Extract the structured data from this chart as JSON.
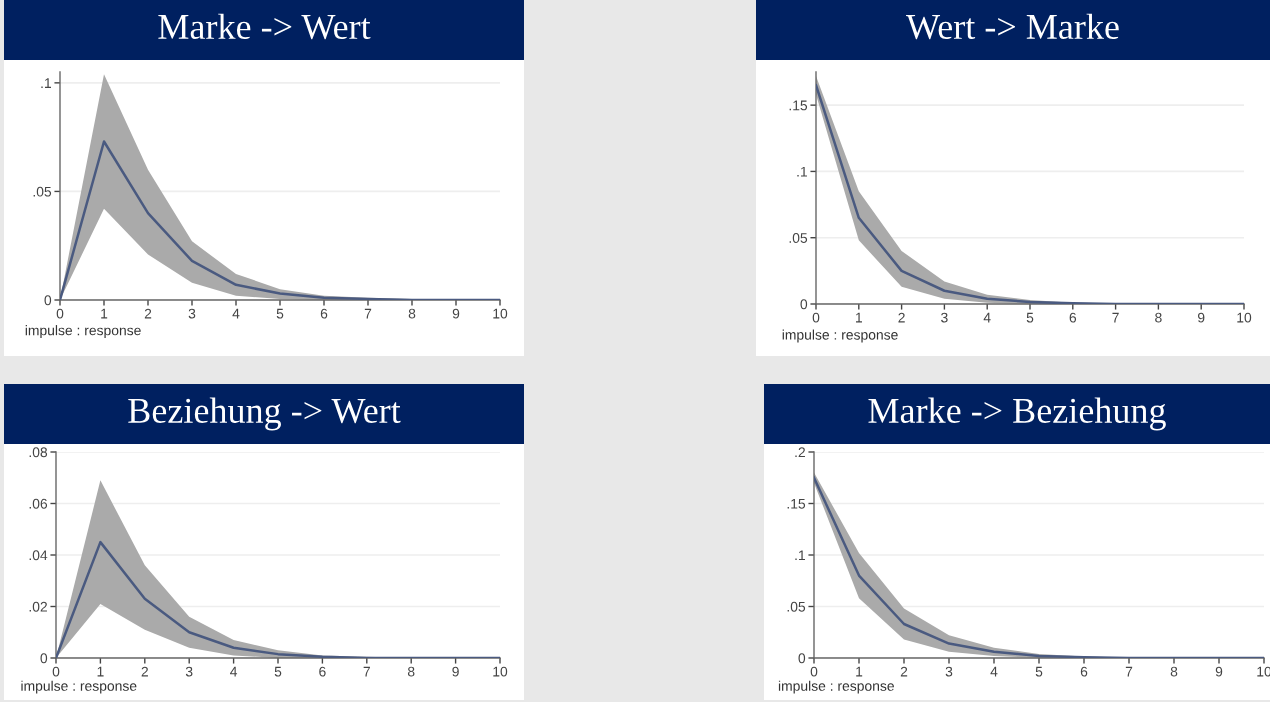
{
  "chart_data": [
    {
      "type": "line",
      "title": "Marke -> Wert",
      "xlabel": "impulse : response",
      "x": [
        0,
        1,
        2,
        3,
        4,
        5,
        6,
        7,
        8,
        9,
        10
      ],
      "xlim": [
        0,
        10
      ],
      "xticks": [
        0,
        1,
        2,
        3,
        4,
        5,
        6,
        7,
        8,
        9,
        10
      ],
      "ylim": [
        0,
        0.105
      ],
      "yticks": [
        0,
        {
          "value": 0.05,
          "label": ".05"
        },
        {
          "value": 0.1,
          "label": ".1"
        }
      ],
      "grid": "y",
      "legend": false,
      "marker": "none",
      "line_style": "solid",
      "series": [
        {
          "color": "#4a5a80",
          "values": [
            0,
            0.073,
            0.04,
            0.018,
            0.007,
            0.003,
            0.001,
            0.0005,
            0,
            0,
            0
          ],
          "upper": [
            0,
            0.104,
            0.06,
            0.027,
            0.012,
            0.005,
            0.002,
            0.001,
            0.0005,
            0,
            0
          ],
          "lower": [
            0,
            0.042,
            0.021,
            0.008,
            0.002,
            0.0005,
            0,
            0,
            0,
            0,
            0
          ]
        }
      ]
    },
    {
      "type": "line",
      "title": "Wert -> Marke",
      "xlabel": "impulse : response",
      "x": [
        0,
        1,
        2,
        3,
        4,
        5,
        6,
        7,
        8,
        9,
        10
      ],
      "xlim": [
        0,
        10
      ],
      "xticks": [
        0,
        1,
        2,
        3,
        4,
        5,
        6,
        7,
        8,
        9,
        10
      ],
      "ylim": [
        0,
        0.175
      ],
      "yticks": [
        0,
        {
          "value": 0.05,
          "label": ".05"
        },
        {
          "value": 0.1,
          "label": ".1"
        },
        {
          "value": 0.15,
          "label": ".15"
        }
      ],
      "grid": "y",
      "legend": false,
      "marker": "none",
      "line_style": "solid",
      "series": [
        {
          "color": "#4a5a80",
          "values": [
            0.165,
            0.065,
            0.025,
            0.01,
            0.004,
            0.0015,
            0.0005,
            0,
            0,
            0,
            0
          ],
          "upper": [
            0.172,
            0.085,
            0.04,
            0.017,
            0.007,
            0.003,
            0.001,
            0.0005,
            0,
            0,
            0
          ],
          "lower": [
            0.158,
            0.048,
            0.013,
            0.004,
            0.001,
            0,
            0,
            0,
            0,
            0,
            0
          ]
        }
      ]
    },
    {
      "type": "line",
      "title": "Beziehung -> Wert",
      "xlabel": "impulse : response",
      "x": [
        0,
        1,
        2,
        3,
        4,
        5,
        6,
        7,
        8,
        9,
        10
      ],
      "xlim": [
        0,
        10
      ],
      "xticks": [
        0,
        1,
        2,
        3,
        4,
        5,
        6,
        7,
        8,
        9,
        10
      ],
      "ylim": [
        0,
        0.08
      ],
      "yticks": [
        0,
        {
          "value": 0.02,
          "label": ".02"
        },
        {
          "value": 0.04,
          "label": ".04"
        },
        {
          "value": 0.06,
          "label": ".06"
        },
        {
          "value": 0.08,
          "label": ".08"
        }
      ],
      "grid": "y",
      "legend": false,
      "marker": "none",
      "line_style": "solid",
      "series": [
        {
          "color": "#4a5a80",
          "values": [
            0,
            0.045,
            0.023,
            0.01,
            0.004,
            0.0015,
            0.0005,
            0,
            0,
            0,
            0
          ],
          "upper": [
            0,
            0.069,
            0.036,
            0.016,
            0.007,
            0.003,
            0.001,
            0.0005,
            0,
            0,
            0
          ],
          "lower": [
            0,
            0.021,
            0.011,
            0.004,
            0.001,
            0,
            0,
            0,
            0,
            0,
            0
          ]
        }
      ]
    },
    {
      "type": "line",
      "title": "Marke -> Beziehung",
      "xlabel": "impulse : response",
      "x": [
        0,
        1,
        2,
        3,
        4,
        5,
        6,
        7,
        8,
        9,
        10
      ],
      "xlim": [
        0,
        10
      ],
      "xticks": [
        0,
        1,
        2,
        3,
        4,
        5,
        6,
        7,
        8,
        9,
        10
      ],
      "ylim": [
        0,
        0.2
      ],
      "yticks": [
        0,
        {
          "value": 0.05,
          "label": ".05"
        },
        {
          "value": 0.1,
          "label": ".1"
        },
        {
          "value": 0.15,
          "label": ".15"
        },
        {
          "value": 0.2,
          "label": ".2"
        }
      ],
      "grid": "y",
      "legend": false,
      "marker": "none",
      "line_style": "solid",
      "series": [
        {
          "color": "#4a5a80",
          "values": [
            0.175,
            0.08,
            0.033,
            0.014,
            0.006,
            0.002,
            0.0008,
            0,
            0,
            0,
            0
          ],
          "upper": [
            0.18,
            0.102,
            0.048,
            0.022,
            0.01,
            0.004,
            0.0015,
            0.0005,
            0,
            0,
            0
          ],
          "lower": [
            0.17,
            0.058,
            0.018,
            0.006,
            0.002,
            0,
            0,
            0,
            0,
            0,
            0
          ]
        }
      ]
    }
  ]
}
